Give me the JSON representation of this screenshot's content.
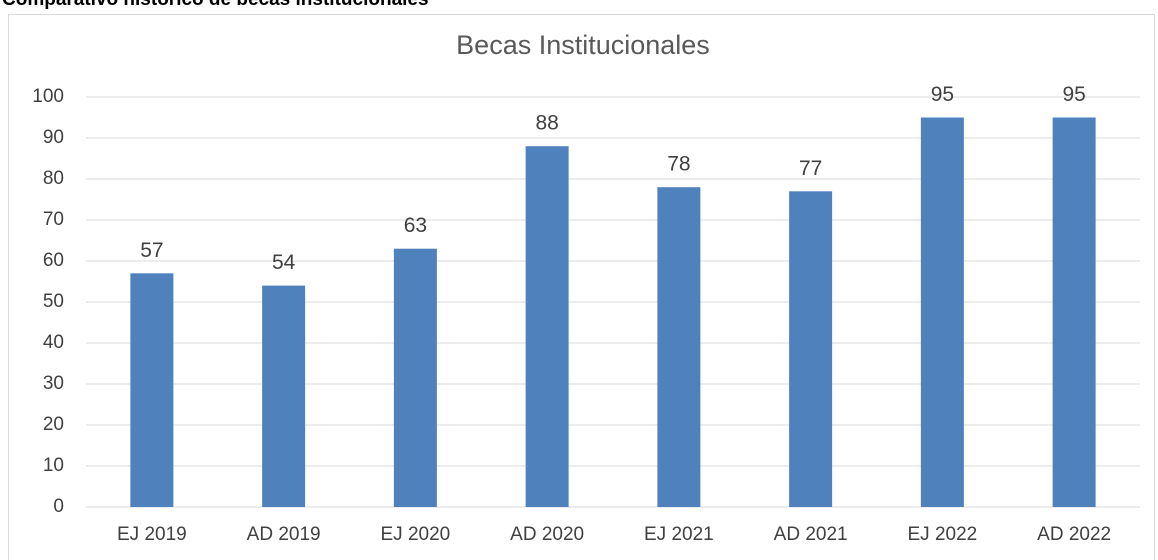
{
  "heading": "Comparativo histórico de becas institucionales",
  "chart_data": {
    "type": "bar",
    "title": "Becas Institucionales",
    "categories": [
      "EJ 2019",
      "AD 2019",
      "EJ 2020",
      "AD 2020",
      "EJ 2021",
      "AD 2021",
      "EJ 2022",
      "AD 2022"
    ],
    "values": [
      57,
      54,
      63,
      88,
      78,
      77,
      95,
      95
    ],
    "color": "#4f81bd",
    "ylim": [
      0,
      100
    ],
    "yticks": [
      0,
      10,
      20,
      30,
      40,
      50,
      60,
      70,
      80,
      90,
      100
    ],
    "grid": true
  }
}
